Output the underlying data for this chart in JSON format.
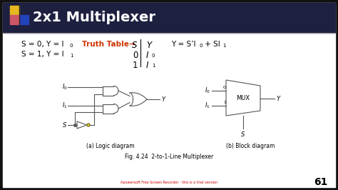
{
  "title": "2x1 Multiplexer",
  "header_bg": "#1e2040",
  "slide_bg": "#ffffff",
  "outer_bg": "#111111",
  "line_color": "#555555",
  "truth_table_color": "#cc3300",
  "text_color": "#111111",
  "yellow_color": "#ffdd00",
  "blue_sq_color": "#2244bb",
  "red_sq_color": "#cc2200",
  "pink_sq_color": "#dd7777",
  "caption_a": "(a) Logic diagram",
  "caption_b": "(b) Block diagram",
  "fig_caption": "Fig. 4.24  2-to-1-Line Multiplexer",
  "page_number": "61",
  "watermark": "Apowersoft Free Screen Recorder - this is a trial version"
}
